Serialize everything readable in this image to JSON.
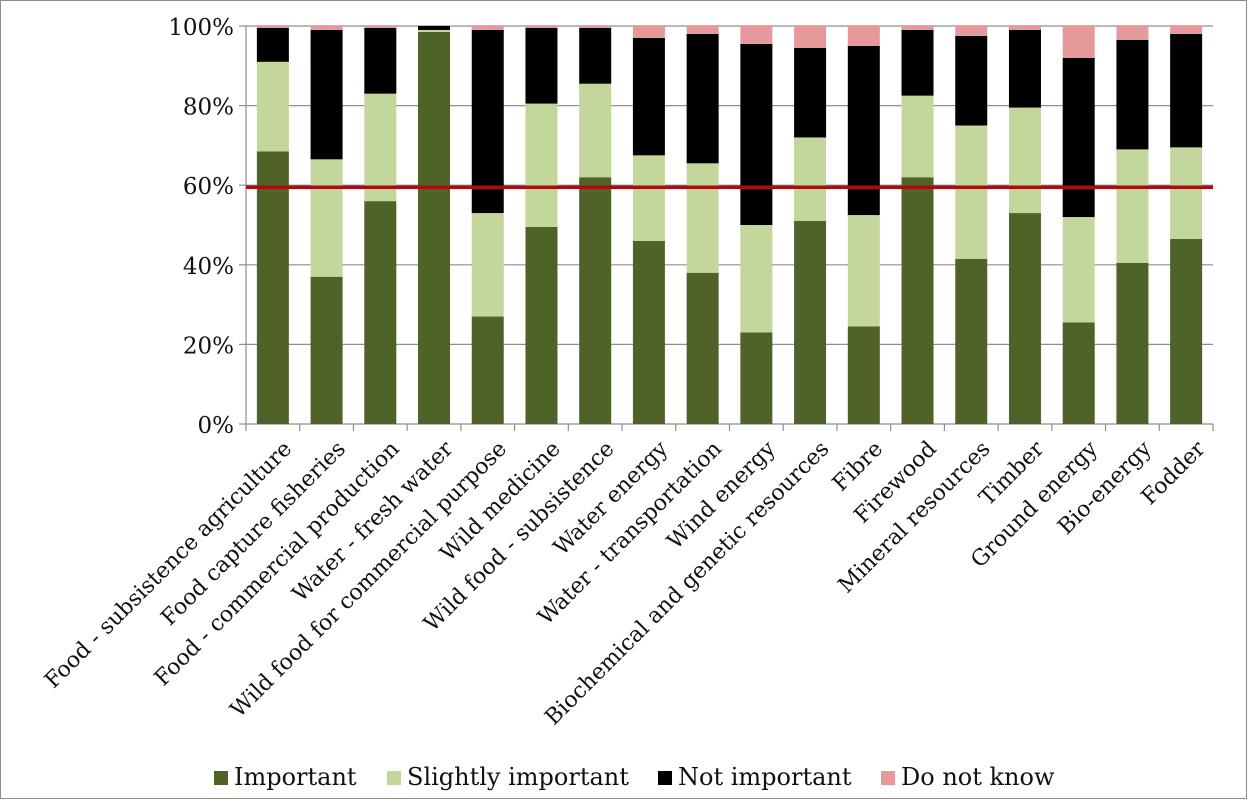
{
  "chart_data": {
    "type": "bar",
    "stacked": true,
    "title": "",
    "xlabel": "",
    "ylabel": "",
    "ylim": [
      0,
      100
    ],
    "y_ticks": [
      "0%",
      "20%",
      "40%",
      "60%",
      "80%",
      "100%"
    ],
    "categories": [
      "Food - subsistence agriculture",
      "Food capture fisheries",
      "Food - commercial production",
      "Water - fresh water",
      "Wild food for commercial purpose",
      "Wild medicine",
      "Wild food - subsistence",
      "Water energy",
      "Water - transportation",
      "Wind energy",
      "Biochemical and genetic resources",
      "Fibre",
      "Firewood",
      "Mineral resources",
      "Timber",
      "Ground energy",
      "Bio-energy",
      "Fodder"
    ],
    "series": [
      {
        "name": "Important",
        "color": "#4f6228",
        "values": [
          68.5,
          37,
          56,
          98.5,
          27,
          49.5,
          62,
          46,
          38,
          23,
          51,
          24.5,
          62,
          41.5,
          53,
          25.5,
          40.5,
          46.5
        ]
      },
      {
        "name": "Slightly important",
        "color": "#c3d69b",
        "values": [
          22.5,
          29.5,
          27,
          0.5,
          26,
          31,
          23.5,
          21.5,
          27.5,
          27,
          21,
          28,
          20.5,
          33.5,
          26.5,
          26.5,
          28.5,
          23
        ]
      },
      {
        "name": "Not important",
        "color": "#000000",
        "values": [
          8.5,
          32.5,
          16.5,
          1,
          46,
          19,
          14,
          29.5,
          32.5,
          45.5,
          22.5,
          42.5,
          16.5,
          22.5,
          19.5,
          40,
          27.5,
          28.5
        ]
      },
      {
        "name": "Do not know",
        "color": "#e6999a",
        "values": [
          0.5,
          1,
          0.5,
          0,
          1,
          0.5,
          0.5,
          3,
          2,
          4.5,
          5.5,
          5,
          1,
          2.5,
          1,
          8,
          3.5,
          2
        ]
      }
    ],
    "reference_line": {
      "value": 59.5,
      "color": "#a50f0f"
    },
    "grid": true,
    "legend_position": "bottom"
  }
}
